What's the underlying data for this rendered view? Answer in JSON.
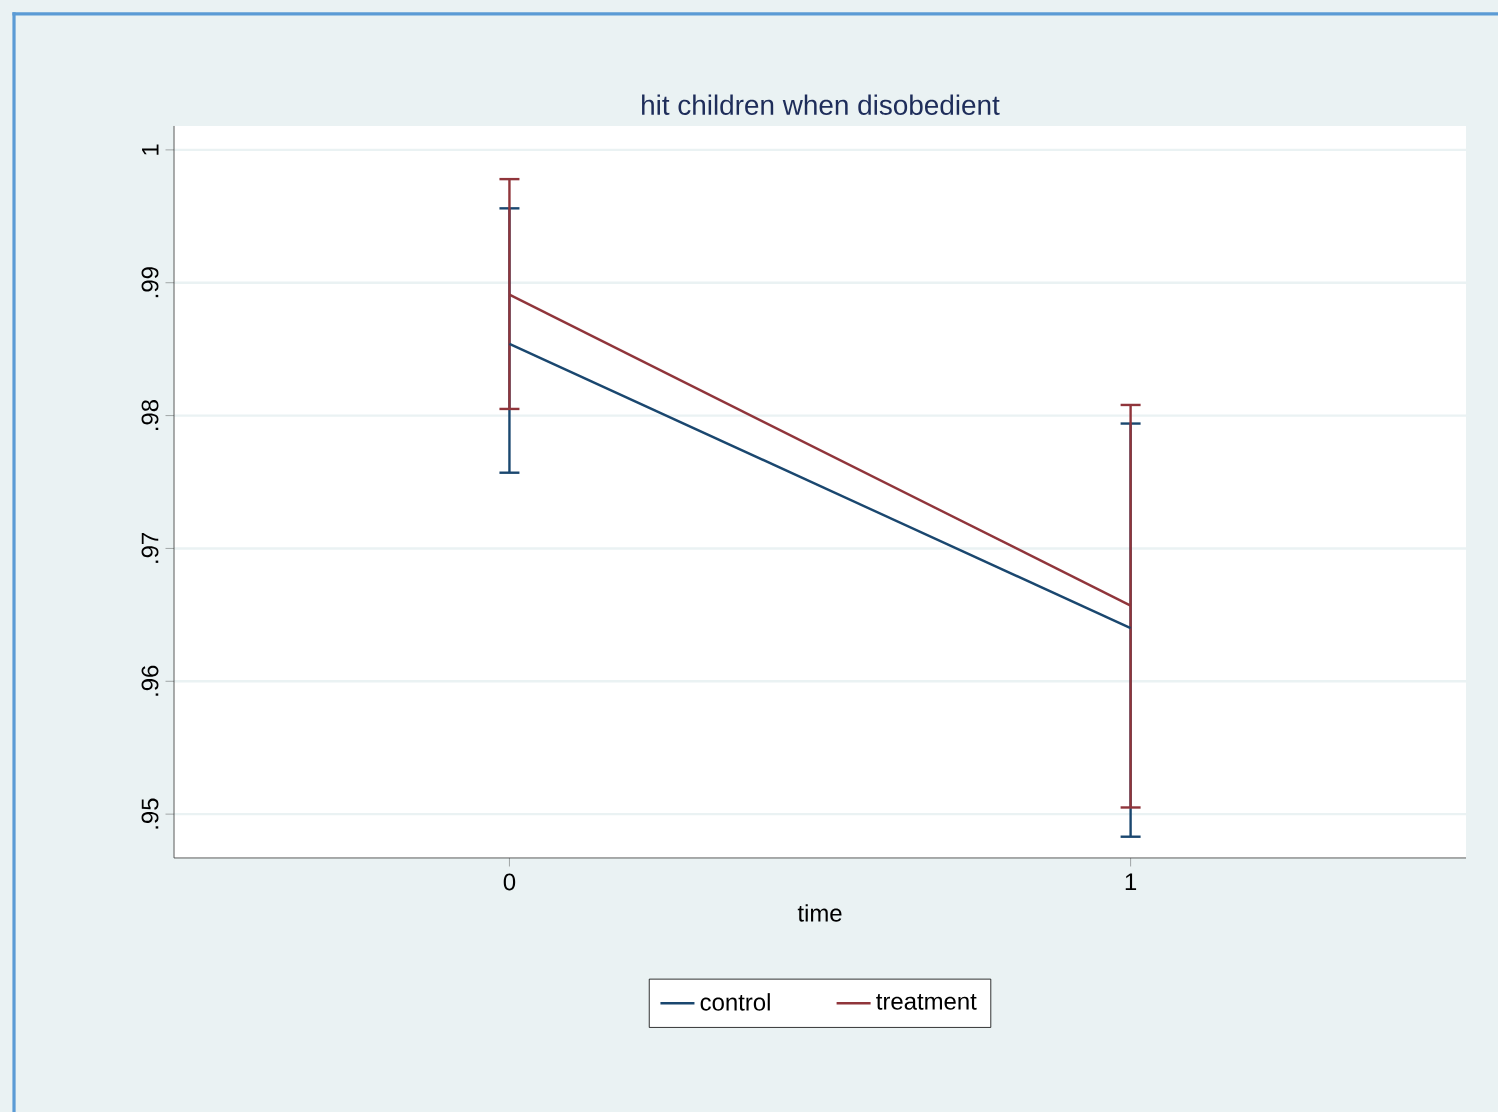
{
  "chart_data": {
    "type": "line",
    "title": "hit children when disobedient",
    "xlabel": "time",
    "x": [
      0,
      1
    ],
    "xlim": [
      -0.54,
      1.54
    ],
    "xticks": [
      0,
      1
    ],
    "ylim": [
      0.9467,
      1.0018
    ],
    "yticks": [
      {
        "value": 0.95,
        "label": ".95"
      },
      {
        "value": 0.96,
        "label": ".96"
      },
      {
        "value": 0.97,
        "label": ".97"
      },
      {
        "value": 0.98,
        "label": ".98"
      },
      {
        "value": 0.99,
        "label": ".99"
      },
      {
        "value": 1,
        "label": "1"
      }
    ],
    "grid": "y",
    "legend": "bottom",
    "marker": "none",
    "line_style": "solid",
    "series": [
      {
        "name": "control",
        "color": "#1a476f",
        "values": [
          0.9854,
          0.964
        ],
        "errors": [
          [
            0.9757,
            0.9956
          ],
          [
            0.9483,
            0.9794
          ]
        ]
      },
      {
        "name": "treatment",
        "color": "#90353b",
        "values": [
          0.9891,
          0.9657
        ],
        "errors": [
          [
            0.9805,
            0.9978
          ],
          [
            0.9505,
            0.9808
          ]
        ]
      }
    ]
  }
}
